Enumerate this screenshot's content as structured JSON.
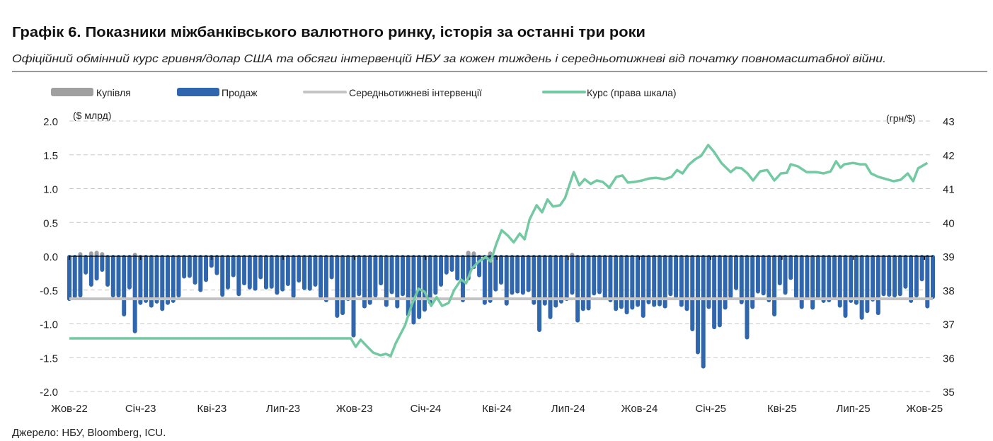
{
  "chart_data": {
    "type": "bar",
    "title": "Графік 6. Показники міжбанківського валютного ринку, історія за останні три роки",
    "subtitle": "Офіційний обмінний курс гривня/долар США та обсяги інтервенцій НБУ за кожен тиждень і середньотижневі від початку повномасштабної війни.",
    "source": "Джерело: НБУ, Bloomberg, ICU.",
    "left_unit": "($ млрд)",
    "right_unit": "(грн/$)",
    "ylim": [
      -2.0,
      2.0
    ],
    "yticks": [
      "2.0",
      "1.5",
      "1.0",
      "0.5",
      "0.0",
      "-0.5",
      "-1.0",
      "-1.5",
      "-2.0"
    ],
    "y2lim": [
      35,
      43
    ],
    "y2ticks": [
      "43",
      "42",
      "41",
      "40",
      "39",
      "38",
      "37",
      "36",
      "35"
    ],
    "xlabels": [
      "Жов-22",
      "Січ-23",
      "Кві-23",
      "Лип-23",
      "Жов-23",
      "Січ-24",
      "Кві-24",
      "Лип-24",
      "Жов-24",
      "Січ-25",
      "Кві-25",
      "Лип-25",
      "Жов-25"
    ],
    "weeks_per_label": 13.04,
    "grid": true,
    "legend_position": "top",
    "legend": {
      "purchase": "Купівля",
      "sales": "Продаж",
      "average": "Середньотижневі інтервенції",
      "rate": "Курс (права шкала)"
    },
    "colors": {
      "purchase": "#a0a0a0",
      "sales": "#2f66ad",
      "average": "#c4c4c4",
      "rate": "#72c9a2"
    },
    "sales": [
      -0.65,
      -0.61,
      -0.6,
      -0.26,
      -0.44,
      -0.35,
      -0.22,
      -0.44,
      -0.6,
      -0.6,
      -0.88,
      -0.48,
      -1.13,
      -0.71,
      -0.68,
      -0.75,
      -0.69,
      -0.8,
      -0.71,
      -0.68,
      -0.6,
      -0.32,
      -0.31,
      -0.41,
      -0.52,
      -0.37,
      -0.16,
      -0.27,
      -0.59,
      -0.48,
      -0.3,
      -0.58,
      -0.42,
      -0.48,
      -0.5,
      -0.33,
      -0.48,
      -0.47,
      -0.56,
      -0.51,
      -0.43,
      -0.61,
      -0.38,
      -0.49,
      -0.5,
      -0.44,
      -0.61,
      -0.67,
      -0.33,
      -0.9,
      -0.86,
      -0.65,
      -1.19,
      -0.58,
      -0.76,
      -0.71,
      -0.6,
      -0.42,
      -0.74,
      -0.55,
      -0.76,
      -0.58,
      -0.88,
      -1.0,
      -0.92,
      -0.81,
      -0.7,
      -0.56,
      -0.44,
      -0.26,
      -0.22,
      -0.35,
      -0.67,
      -0.35,
      -0.18,
      -0.3,
      -0.71,
      -0.68,
      -0.51,
      -0.41,
      -0.72,
      -0.56,
      -0.54,
      -0.56,
      -0.52,
      -0.71,
      -1.11,
      -0.72,
      -0.92,
      -0.75,
      -0.69,
      -0.65,
      -0.56,
      -0.97,
      -0.8,
      -0.79,
      -0.57,
      -0.55,
      -0.64,
      -0.67,
      -0.8,
      -0.77,
      -0.85,
      -0.78,
      -0.74,
      -0.9,
      -0.7,
      -0.74,
      -0.73,
      -0.76,
      -0.58,
      -0.61,
      -0.74,
      -0.8,
      -1.1,
      -1.44,
      -1.65,
      -0.77,
      -1.07,
      -1.04,
      -0.78,
      -0.61,
      -0.49,
      -0.7,
      -1.22,
      -0.77,
      -0.54,
      -0.57,
      -0.67,
      -0.88,
      -0.42,
      -0.56,
      -0.34,
      -0.61,
      -0.77,
      -0.64,
      -0.78,
      -0.64,
      -0.68,
      -0.67,
      -0.61,
      -0.75,
      -0.9,
      -0.68,
      -0.71,
      -0.93,
      -0.83,
      -0.66,
      -0.86,
      -0.58,
      -0.59,
      -0.6,
      -0.58,
      -0.47,
      -0.68,
      -0.6,
      -0.36,
      -0.76,
      -0.62
    ],
    "purchase": [
      [
        2,
        0.02
      ],
      [
        4,
        0.03
      ],
      [
        5,
        0.04
      ],
      [
        6,
        0.02
      ],
      [
        92,
        0.01
      ],
      [
        73,
        0.04
      ],
      [
        74,
        0.03
      ],
      [
        77,
        0.03
      ],
      [
        12,
        0.01
      ]
    ],
    "average": -0.63,
    "rate": [
      [
        0,
        36.57
      ],
      [
        51.5,
        36.57
      ],
      [
        52.4,
        36.32
      ],
      [
        53.3,
        36.53
      ],
      [
        54.3,
        36.36
      ],
      [
        55.6,
        36.15
      ],
      [
        56.9,
        36.07
      ],
      [
        57.9,
        36.11
      ],
      [
        58.8,
        36.05
      ],
      [
        59.7,
        36.42
      ],
      [
        61.4,
        36.95
      ],
      [
        62.7,
        37.58
      ],
      [
        63.9,
        38.04
      ],
      [
        65.0,
        37.95
      ],
      [
        66.2,
        37.53
      ],
      [
        67.2,
        37.79
      ],
      [
        68.2,
        37.53
      ],
      [
        69.4,
        37.62
      ],
      [
        70.4,
        38.0
      ],
      [
        71.7,
        38.31
      ],
      [
        72.6,
        38.2
      ],
      [
        73.6,
        38.62
      ],
      [
        74.9,
        38.84
      ],
      [
        76.2,
        38.98
      ],
      [
        77.1,
        38.84
      ],
      [
        78.1,
        39.36
      ],
      [
        79.1,
        39.77
      ],
      [
        80.3,
        39.6
      ],
      [
        81.3,
        39.41
      ],
      [
        82.4,
        39.67
      ],
      [
        83.3,
        39.5
      ],
      [
        84.2,
        40.09
      ],
      [
        85.5,
        40.51
      ],
      [
        86.5,
        40.3
      ],
      [
        87.5,
        40.68
      ],
      [
        88.5,
        40.47
      ],
      [
        89.8,
        40.51
      ],
      [
        90.7,
        40.72
      ],
      [
        92.3,
        41.49
      ],
      [
        93.3,
        41.1
      ],
      [
        94.3,
        41.28
      ],
      [
        95.4,
        41.14
      ],
      [
        96.5,
        41.24
      ],
      [
        97.6,
        41.2
      ],
      [
        98.8,
        41.03
      ],
      [
        100.1,
        41.35
      ],
      [
        101.2,
        41.39
      ],
      [
        102.2,
        41.18
      ],
      [
        103.5,
        41.2
      ],
      [
        104.8,
        41.24
      ],
      [
        106.0,
        41.3
      ],
      [
        107.3,
        41.32
      ],
      [
        108.9,
        41.28
      ],
      [
        110.2,
        41.35
      ],
      [
        111.2,
        41.55
      ],
      [
        112.2,
        41.45
      ],
      [
        113.3,
        41.7
      ],
      [
        114.5,
        41.87
      ],
      [
        115.6,
        41.97
      ],
      [
        116.9,
        42.29
      ],
      [
        118.0,
        42.08
      ],
      [
        119.3,
        41.76
      ],
      [
        121.0,
        41.49
      ],
      [
        122.0,
        41.62
      ],
      [
        123.0,
        41.6
      ],
      [
        124.1,
        41.45
      ],
      [
        125.1,
        41.24
      ],
      [
        126.4,
        41.51
      ],
      [
        127.7,
        41.55
      ],
      [
        129.0,
        41.24
      ],
      [
        130.2,
        41.45
      ],
      [
        131.3,
        41.47
      ],
      [
        132.0,
        41.72
      ],
      [
        133.3,
        41.66
      ],
      [
        134.9,
        41.49
      ],
      [
        136.7,
        41.49
      ],
      [
        138.0,
        41.45
      ],
      [
        139.3,
        41.51
      ],
      [
        140.3,
        41.81
      ],
      [
        141.1,
        41.62
      ],
      [
        141.8,
        41.72
      ],
      [
        143.4,
        41.76
      ],
      [
        144.7,
        41.72
      ],
      [
        145.7,
        41.72
      ],
      [
        146.7,
        41.45
      ],
      [
        148.0,
        41.35
      ],
      [
        149.5,
        41.28
      ],
      [
        150.8,
        41.22
      ],
      [
        152.1,
        41.26
      ],
      [
        153.4,
        41.45
      ],
      [
        154.4,
        41.22
      ],
      [
        155.3,
        41.6
      ],
      [
        157.0,
        41.76
      ]
    ]
  }
}
